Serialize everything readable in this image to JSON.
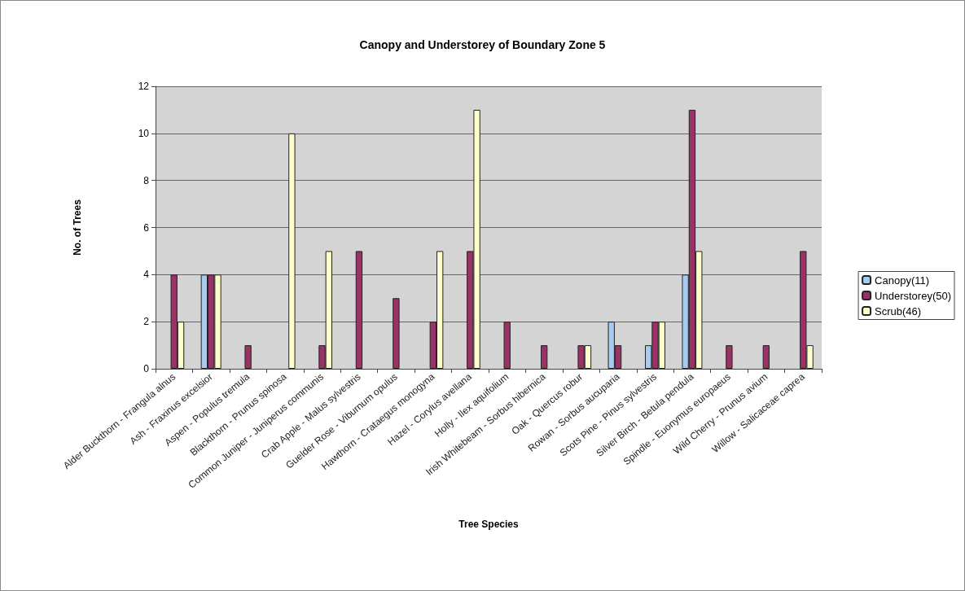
{
  "chart_data": {
    "type": "bar",
    "title": "Canopy and Understorey of Boundary Zone 5",
    "xlabel": "Tree Species",
    "ylabel": "No. of Trees",
    "categories": [
      "Alder Buckthorn - Frangula alnus",
      "Ash - Fraxinus excelsior",
      "Aspen - Populus tremula",
      "Blackthorn - Prunus spinosa",
      "Common Juniper - Juniperus communis",
      "Crab Apple - Malus sylvestris",
      "Guelder Rose - Viburnum opulus",
      "Hawthorn - Crataegus monogyna",
      "Hazel - Corylus avellana",
      "Holly - Ilex aquifolium",
      "Irish Whitebeam - Sorbus hibernica",
      "Oak - Quercus robur",
      "Rowan - Sorbus aucuparia",
      "Scots Pine - Pinus sylvestris",
      "Silver Birch - Betula pendula",
      "Spindle - Euonymus europaeus",
      "Wild Cherry - Prunus avium",
      "Willow - Salicaceae caprea"
    ],
    "series": [
      {
        "name": "Canopy(11)",
        "color": "#a6caf0",
        "values": [
          0,
          4,
          0,
          0,
          0,
          0,
          0,
          0,
          0,
          0,
          0,
          0,
          2,
          1,
          4,
          0,
          0,
          0
        ]
      },
      {
        "name": "Understorey(50)",
        "color": "#993366",
        "values": [
          4,
          4,
          1,
          0,
          1,
          5,
          3,
          2,
          5,
          2,
          1,
          1,
          1,
          2,
          11,
          1,
          1,
          5
        ]
      },
      {
        "name": "Scrub(46)",
        "color": "#ffffcc",
        "values": [
          2,
          4,
          0,
          10,
          5,
          0,
          0,
          5,
          11,
          0,
          0,
          1,
          0,
          2,
          5,
          0,
          0,
          1
        ]
      }
    ],
    "ylim": [
      0,
      12
    ],
    "yticks": [
      0,
      2,
      4,
      6,
      8,
      10,
      12
    ],
    "grid": "y",
    "legend": "right"
  }
}
